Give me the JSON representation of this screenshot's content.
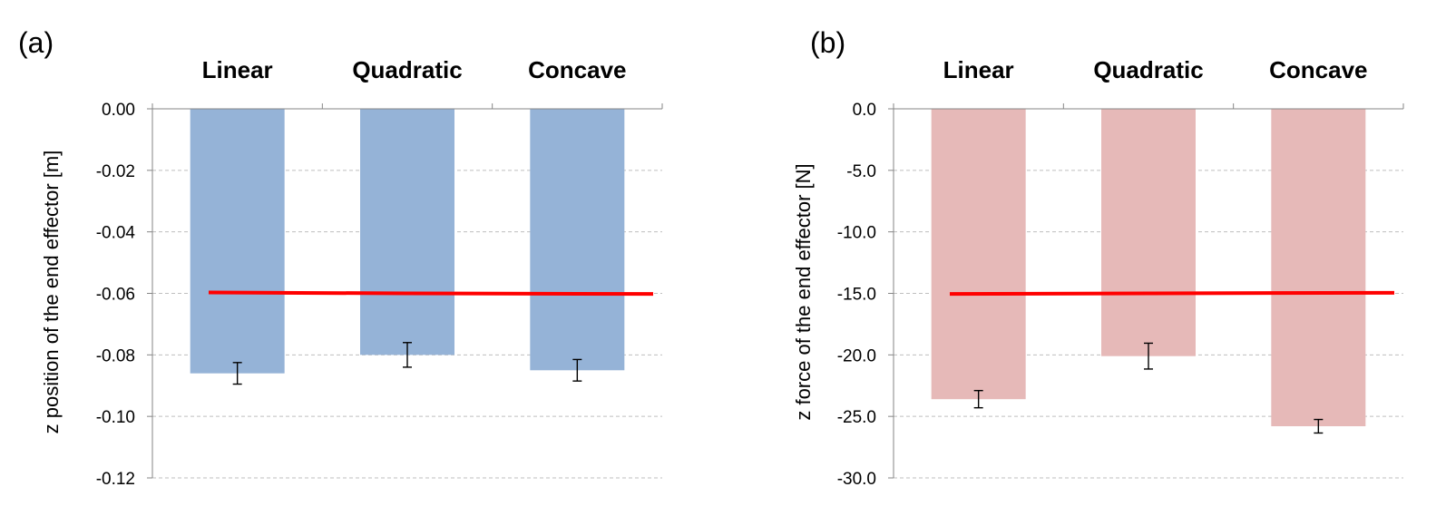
{
  "chart_data": [
    {
      "type": "bar",
      "panel_label": "(a)",
      "categories": [
        "Linear",
        "Quadratic",
        "Concave"
      ],
      "values": [
        -0.086,
        -0.08,
        -0.085
      ],
      "error": [
        0.0035,
        0.004,
        0.0035
      ],
      "reference_line": [
        -0.0597,
        -0.06,
        -0.0602
      ],
      "ylabel": "z position of the end effector [m]",
      "ylim": [
        -0.12,
        0.0
      ],
      "yticks": [
        "0.00",
        "-0.02",
        "-0.04",
        "-0.06",
        "-0.08",
        "-0.10",
        "-0.12"
      ],
      "ytick_values": [
        0.0,
        -0.02,
        -0.04,
        -0.06,
        -0.08,
        -0.1,
        -0.12
      ],
      "grid": true,
      "category_labels_position": "top",
      "bar_color": "#95B3D7",
      "reference_color": "#FF0000"
    },
    {
      "type": "bar",
      "panel_label": "(b)",
      "categories": [
        "Linear",
        "Quadratic",
        "Concave"
      ],
      "values": [
        -23.6,
        -20.1,
        -25.8
      ],
      "error": [
        0.7,
        1.05,
        0.55
      ],
      "reference_line": [
        -15.05,
        -15.0,
        -14.95
      ],
      "ylabel": "z force of the end effector [N]",
      "ylim": [
        -30.0,
        0.0
      ],
      "yticks": [
        "0.0",
        "-5.0",
        "-10.0",
        "-15.0",
        "-20.0",
        "-25.0",
        "-30.0"
      ],
      "ytick_values": [
        0.0,
        -5.0,
        -10.0,
        -15.0,
        -20.0,
        -25.0,
        -30.0
      ],
      "grid": true,
      "category_labels_position": "top",
      "bar_color": "#E6B9B8",
      "reference_color": "#FF0000"
    }
  ]
}
